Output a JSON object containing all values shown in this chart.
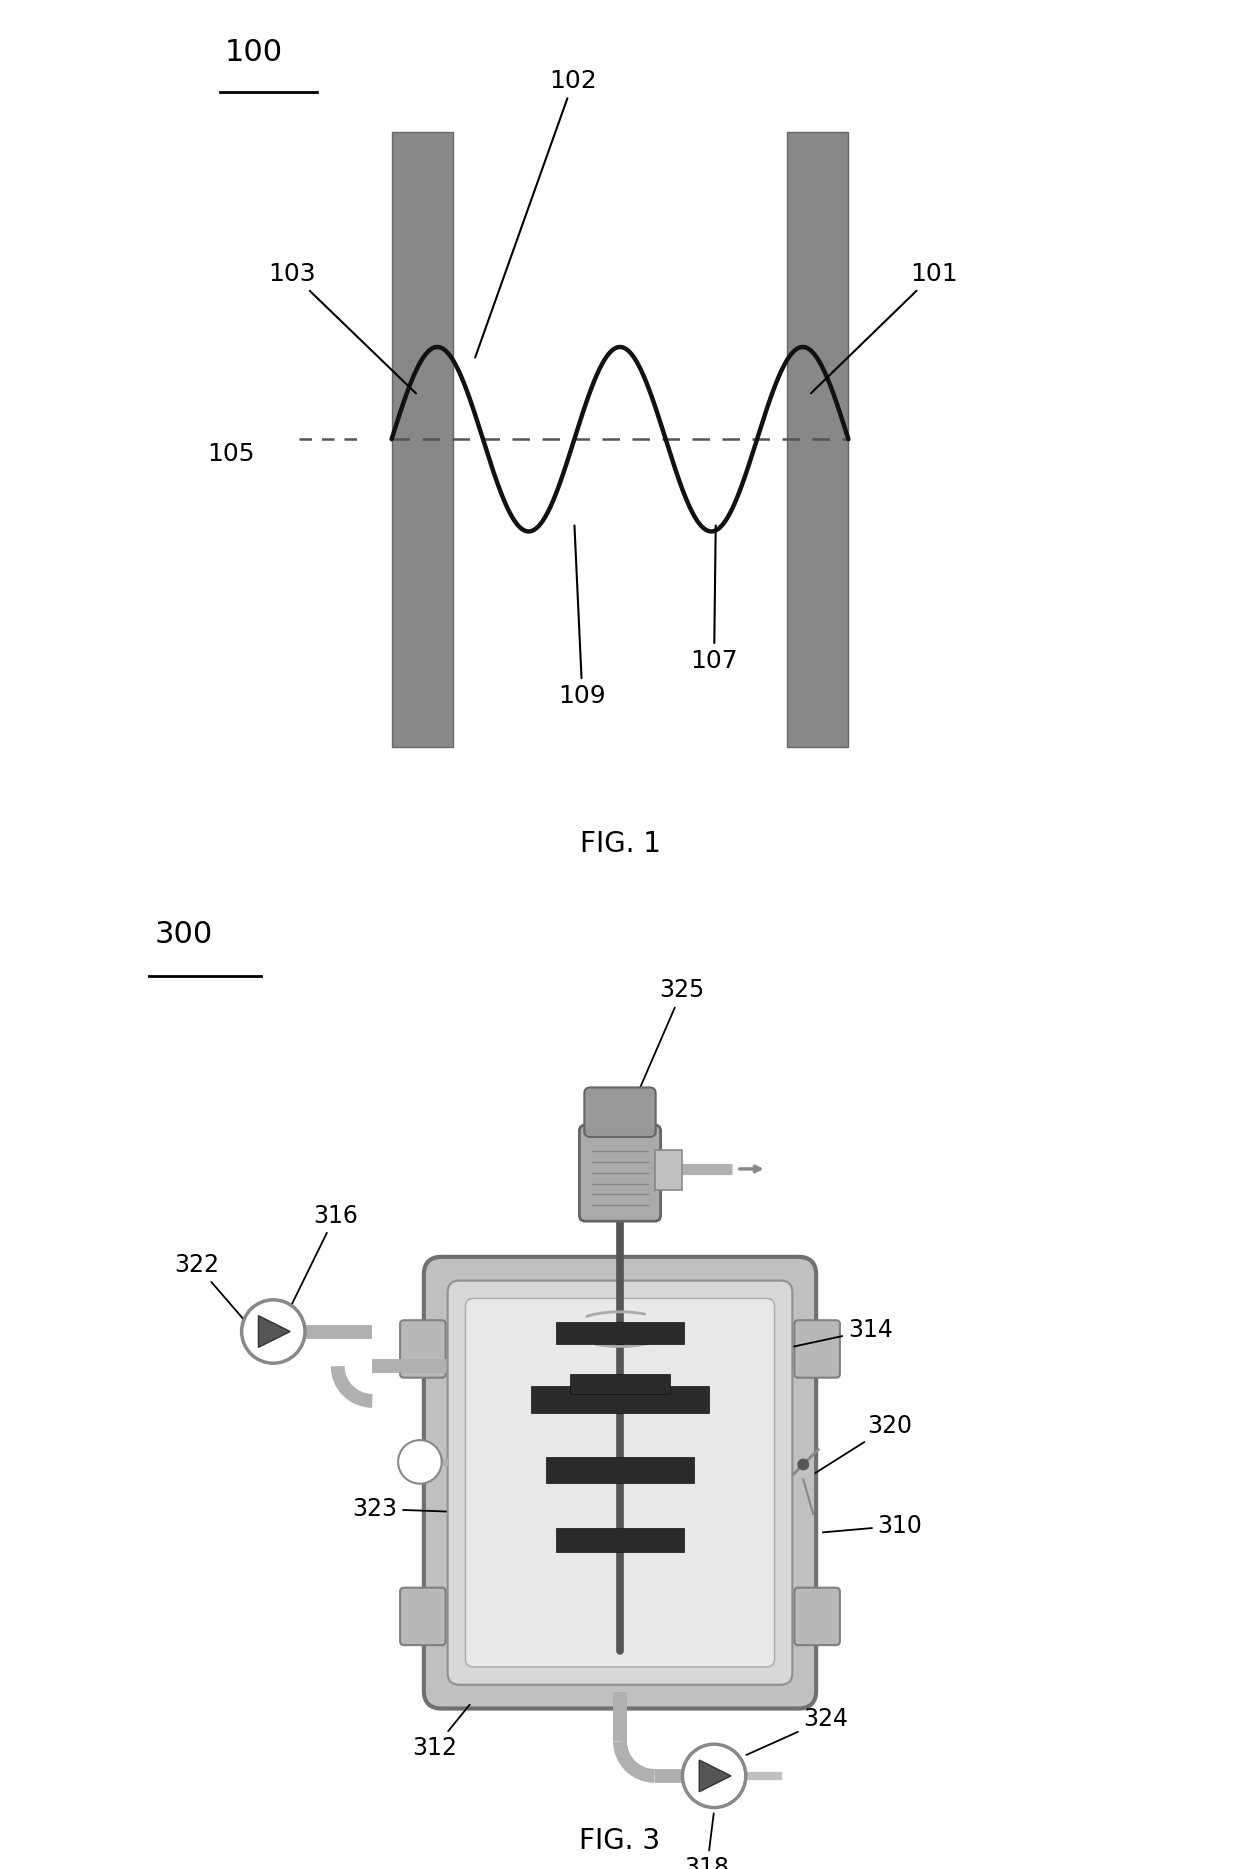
{
  "fig1": {
    "title": "FIG. 1",
    "wall_color": "#888888",
    "wave_color": "#111111",
    "dashed_color": "#666666",
    "bg_color": "#ffffff"
  },
  "fig3": {
    "title": "FIG. 3",
    "tank_outer_color": "#b0b0b0",
    "tank_inner_color": "#d8d8d8",
    "liquid_color": "#e0e0e0",
    "pipe_color": "#b0b0b0",
    "dark_bar_color": "#2a2a2a",
    "shaft_color": "#555555",
    "motor_color": "#aaaaaa",
    "pump_fill": "#f0f0f0",
    "bg_color": "#ffffff"
  }
}
